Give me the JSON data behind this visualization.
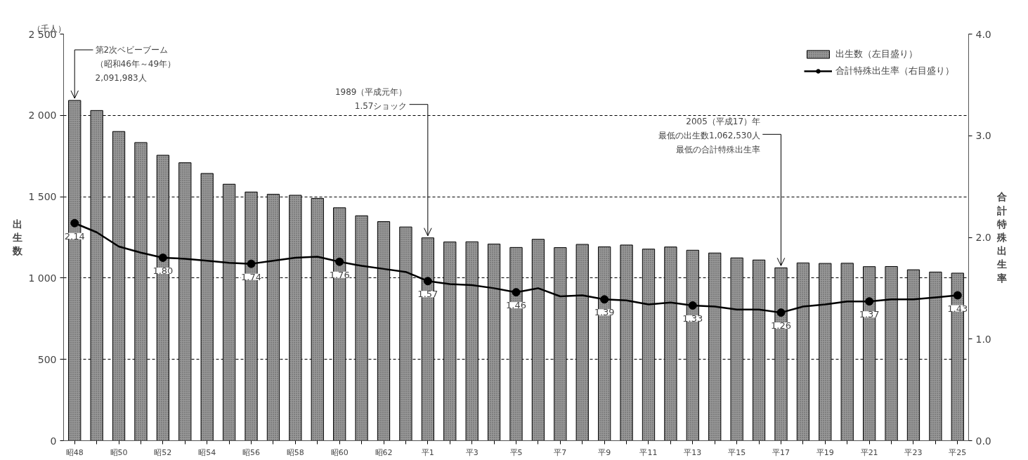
{
  "chart_data": {
    "type": "bar",
    "categories": [
      "昭48",
      null,
      "昭50",
      null,
      "昭52",
      null,
      "昭54",
      null,
      "昭56",
      null,
      "昭58",
      null,
      "昭60",
      null,
      "昭62",
      null,
      "平1",
      null,
      "平3",
      null,
      "平5",
      null,
      "平7",
      null,
      "平9",
      null,
      "平11",
      null,
      "平13",
      null,
      "平15",
      null,
      "平17",
      null,
      "平19",
      null,
      "平21",
      null,
      "平23",
      null,
      "平25"
    ],
    "series": [
      {
        "name": "出生数（左目盛り）",
        "color": "#999999",
        "values": [
          2092,
          2030,
          1901,
          1833,
          1755,
          1709,
          1643,
          1577,
          1529,
          1515,
          1509,
          1490,
          1432,
          1383,
          1347,
          1314,
          1247,
          1222,
          1223,
          1209,
          1188,
          1238,
          1187,
          1207,
          1192,
          1203,
          1178,
          1191,
          1171,
          1154,
          1124,
          1111,
          1063,
          1093,
          1090,
          1091,
          1070,
          1071,
          1051,
          1037,
          1030
        ]
      },
      {
        "name": "合計特殊出生率（右目盛り）",
        "type": "line",
        "axis": "y2",
        "color": "#000000",
        "values": [
          2.14,
          2.05,
          1.91,
          1.85,
          1.8,
          1.79,
          1.77,
          1.75,
          1.74,
          1.77,
          1.8,
          1.81,
          1.76,
          1.72,
          1.69,
          1.66,
          1.57,
          1.54,
          1.53,
          1.5,
          1.46,
          1.5,
          1.42,
          1.43,
          1.39,
          1.38,
          1.34,
          1.36,
          1.33,
          1.32,
          1.29,
          1.29,
          1.26,
          1.32,
          1.34,
          1.37,
          1.37,
          1.39,
          1.39,
          1.41,
          1.43
        ],
        "value_labels": [
          "2.14",
          null,
          null,
          null,
          "1.80",
          null,
          null,
          null,
          "1.74",
          null,
          null,
          null,
          "1.76",
          null,
          null,
          null,
          "1.57",
          null,
          null,
          null,
          "1.46",
          null,
          null,
          null,
          "1.39",
          null,
          null,
          null,
          "1.33",
          null,
          null,
          null,
          "1.26",
          null,
          null,
          null,
          "1.37",
          null,
          null,
          null,
          "1.43"
        ]
      }
    ],
    "ylabel": "出生数",
    "y2label": "合計特殊出生率",
    "ylim": [
      0,
      2500
    ],
    "yticks": [
      0,
      500,
      {
        "value": 1000,
        "label": "1 000"
      },
      {
        "value": 1500,
        "label": "1 500"
      },
      {
        "value": 2000,
        "label": "2 000"
      },
      {
        "value": 2500,
        "label": "2 500"
      }
    ],
    "y2lim": [
      0,
      4
    ],
    "y2ticks": [
      {
        "value": 0,
        "label": "0.0"
      },
      {
        "value": 1,
        "label": "1.0"
      },
      {
        "value": 2,
        "label": "2.0"
      },
      {
        "value": 3,
        "label": "3.0"
      },
      {
        "value": 4,
        "label": "4.0"
      }
    ],
    "grid": "y",
    "legend": "top right",
    "annotations": [
      "（千人）",
      {
        "text": "第2次ベビーブーム",
        "x": "昭48",
        "y": 2092
      },
      "（昭和46年～49年）",
      "2,091,983人",
      {
        "text": "1989（平成元年）",
        "x": "平1",
        "y": 1247
      },
      "1.57ショック",
      {
        "text": "2005（平成17）年",
        "x": "平17",
        "y": 1063
      },
      "最低の出生数1,062,530人",
      "最低の合計特殊出生率"
    ]
  }
}
